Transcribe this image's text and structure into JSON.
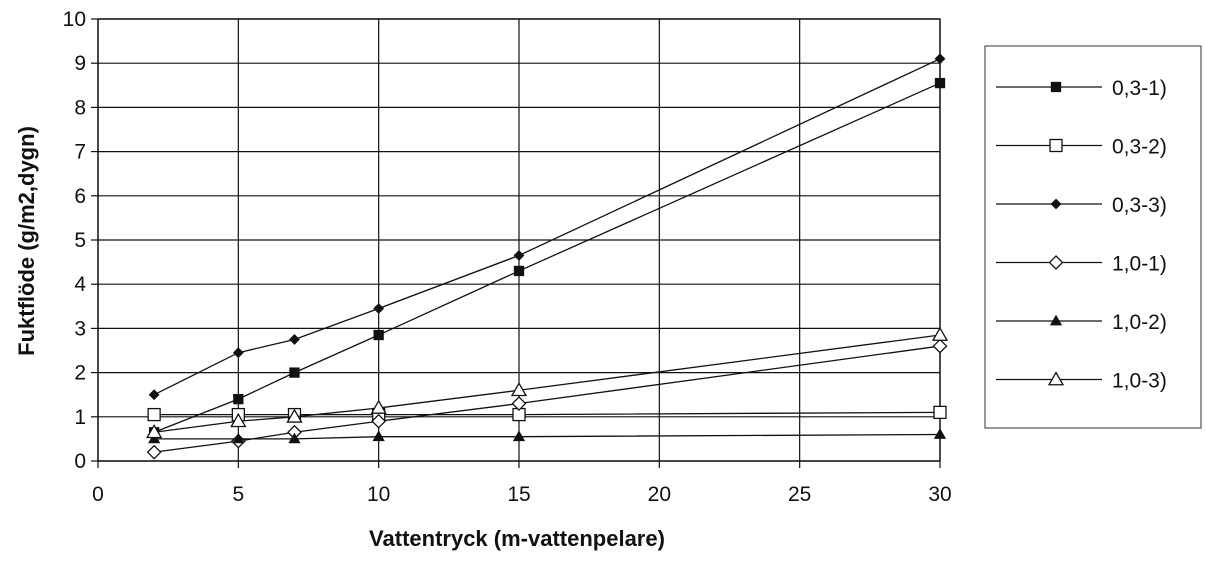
{
  "chart_data": {
    "type": "line",
    "xlabel": "Vattentryck (m-vattenpelare)",
    "ylabel": "Fuktflöde (g/m2,dygn)",
    "xlim": [
      0,
      30
    ],
    "ylim": [
      0,
      10
    ],
    "xticks": [
      "0",
      "5",
      "10",
      "15",
      "20",
      "25",
      "30"
    ],
    "yticks": [
      "0",
      "1",
      "2",
      "3",
      "4",
      "5",
      "6",
      "7",
      "8",
      "9",
      "10"
    ],
    "grid": true,
    "legend_position": "right",
    "series": [
      {
        "name": "0,3-1)",
        "marker": "square-filled",
        "x": [
          2,
          5,
          7,
          10,
          15,
          30
        ],
        "y": [
          0.65,
          1.4,
          2.0,
          2.85,
          4.3,
          8.55
        ]
      },
      {
        "name": "0,3-2)",
        "marker": "square-open",
        "x": [
          2,
          5,
          7,
          10,
          15,
          30
        ],
        "y": [
          1.05,
          1.05,
          1.05,
          1.05,
          1.05,
          1.1
        ]
      },
      {
        "name": "0,3-3)",
        "marker": "diamond-filled",
        "x": [
          2,
          5,
          7,
          10,
          15,
          30
        ],
        "y": [
          1.5,
          2.45,
          2.75,
          3.45,
          4.65,
          9.1
        ]
      },
      {
        "name": "1,0-1)",
        "marker": "diamond-open",
        "x": [
          2,
          5,
          7,
          10,
          15,
          30
        ],
        "y": [
          0.2,
          0.45,
          0.65,
          0.9,
          1.3,
          2.6
        ]
      },
      {
        "name": "1,0-2)",
        "marker": "triangle-filled",
        "x": [
          2,
          5,
          7,
          10,
          15,
          30
        ],
        "y": [
          0.5,
          0.5,
          0.5,
          0.55,
          0.55,
          0.6
        ]
      },
      {
        "name": "1,0-3)",
        "marker": "triangle-open",
        "x": [
          2,
          5,
          7,
          10,
          15,
          30
        ],
        "y": [
          0.65,
          0.9,
          1.0,
          1.2,
          1.6,
          2.85
        ]
      }
    ]
  }
}
